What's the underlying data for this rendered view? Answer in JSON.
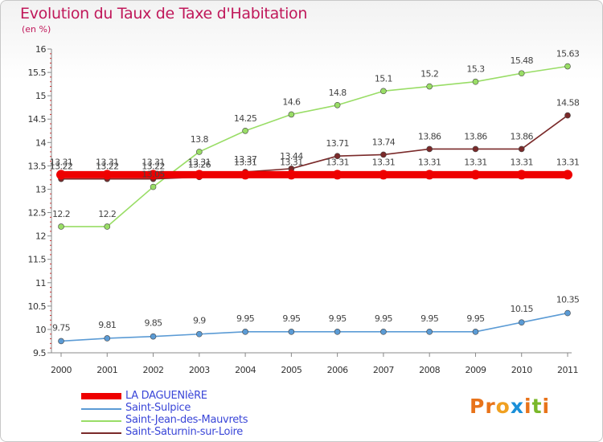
{
  "title": "Evolution du Taux de Taxe d'Habitation",
  "subtitle": "(en %)",
  "brand": {
    "letters": [
      "P",
      "r",
      "o",
      "x",
      "i",
      "t",
      "i"
    ],
    "colors": [
      "#e8731a",
      "#e8731a",
      "#f0a020",
      "#1a8fd8",
      "#e8731a",
      "#7ab82a",
      "#e8731a"
    ]
  },
  "chart_data": {
    "type": "line",
    "x": [
      2000,
      2001,
      2002,
      2003,
      2004,
      2005,
      2006,
      2007,
      2008,
      2009,
      2010,
      2011
    ],
    "ylim": [
      9.5,
      16
    ],
    "yticks": [
      "9.5",
      "10",
      "10.5",
      "11",
      "11.5",
      "12",
      "12.5",
      "13",
      "13.5",
      "14",
      "14.5",
      "15",
      "15.5",
      "16"
    ],
    "grid": false,
    "legend_position": "bottom",
    "series": [
      {
        "name": "LA DAGUENIèRE",
        "color": "#ee0000",
        "values": [
          13.31,
          13.31,
          13.31,
          13.31,
          13.31,
          13.31,
          13.31,
          13.31,
          13.31,
          13.31,
          13.31,
          13.31
        ],
        "labels": [
          "13.31",
          "13.31",
          "13.31",
          "13.31",
          "13.31",
          "13.31",
          "13.31",
          "13.31",
          "13.31",
          "13.31",
          "13.31",
          "13.31"
        ]
      },
      {
        "name": "Saint-Sulpice",
        "color": "#5b9bd5",
        "values": [
          9.75,
          9.81,
          9.85,
          9.9,
          9.95,
          9.95,
          9.95,
          9.95,
          9.95,
          9.95,
          10.15,
          10.35
        ],
        "labels": [
          "9.75",
          "9.81",
          "9.85",
          "9.9",
          "9.95",
          "9.95",
          "9.95",
          "9.95",
          "9.95",
          "9.95",
          "10.15",
          "10.35"
        ]
      },
      {
        "name": "Saint-Jean-des-Mauvrets",
        "color": "#99dd66",
        "values": [
          12.2,
          12.2,
          13.05,
          13.8,
          14.25,
          14.6,
          14.8,
          15.1,
          15.2,
          15.3,
          15.48,
          15.63
        ],
        "labels": [
          "12.2",
          "12.2",
          "13.05",
          "13.8",
          "14.25",
          "14.6",
          "14.8",
          "15.1",
          "15.2",
          "15.3",
          "15.48",
          "15.63"
        ]
      },
      {
        "name": "Saint-Saturnin-sur-Loire",
        "color": "#7a2a2a",
        "values": [
          13.22,
          13.22,
          13.22,
          13.26,
          13.37,
          13.44,
          13.71,
          13.74,
          13.86,
          13.86,
          13.86,
          14.58
        ],
        "labels": [
          "13.22",
          "13.22",
          "13.22",
          "13.26",
          "13.37",
          "13.44",
          "13.71",
          "13.74",
          "13.86",
          "13.86",
          "13.86",
          "14.58"
        ]
      }
    ]
  }
}
